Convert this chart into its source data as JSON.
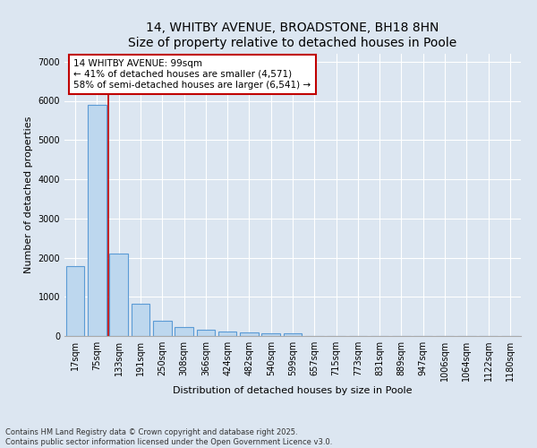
{
  "title": "14, WHITBY AVENUE, BROADSTONE, BH18 8HN",
  "subtitle": "Size of property relative to detached houses in Poole",
  "xlabel": "Distribution of detached houses by size in Poole",
  "ylabel": "Number of detached properties",
  "categories": [
    "17sqm",
    "75sqm",
    "133sqm",
    "191sqm",
    "250sqm",
    "308sqm",
    "366sqm",
    "424sqm",
    "482sqm",
    "540sqm",
    "599sqm",
    "657sqm",
    "715sqm",
    "773sqm",
    "831sqm",
    "889sqm",
    "947sqm",
    "1006sqm",
    "1064sqm",
    "1122sqm",
    "1180sqm"
  ],
  "values": [
    1780,
    5900,
    2100,
    820,
    380,
    220,
    150,
    110,
    90,
    70,
    60,
    0,
    0,
    0,
    0,
    0,
    0,
    0,
    0,
    0,
    0
  ],
  "bar_color": "#bdd7ee",
  "bar_edge_color": "#5b9bd5",
  "vline_color": "#c00000",
  "annotation_text": "14 WHITBY AVENUE: 99sqm\n← 41% of detached houses are smaller (4,571)\n58% of semi-detached houses are larger (6,541) →",
  "annotation_box_color": "#ffffff",
  "annotation_box_edge": "#c00000",
  "ylim": [
    0,
    7200
  ],
  "yticks": [
    0,
    1000,
    2000,
    3000,
    4000,
    5000,
    6000,
    7000
  ],
  "background_color": "#dce6f1",
  "plot_background_color": "#dce6f1",
  "footer": "Contains HM Land Registry data © Crown copyright and database right 2025.\nContains public sector information licensed under the Open Government Licence v3.0.",
  "title_fontsize": 10,
  "axis_label_fontsize": 8,
  "tick_fontsize": 7,
  "annotation_fontsize": 7.5,
  "footer_fontsize": 6
}
